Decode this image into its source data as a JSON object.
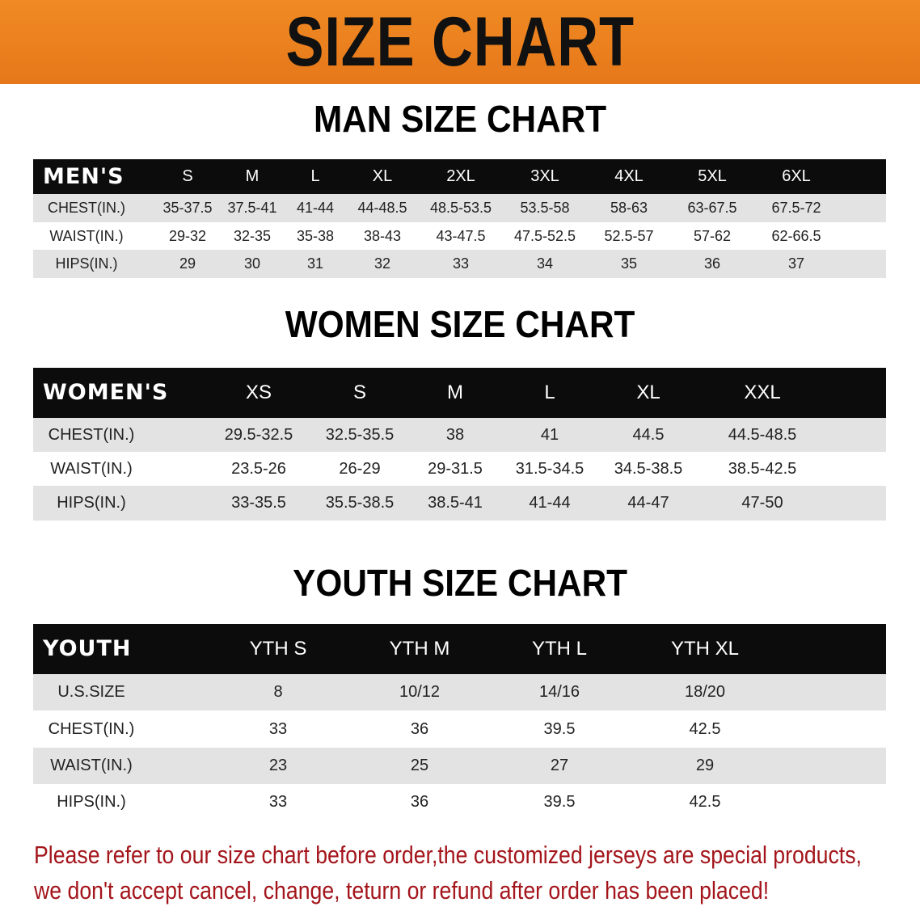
{
  "banner": {
    "title": "SIZE CHART",
    "color": "#ec7f1f"
  },
  "men": {
    "title": "MAN SIZE CHART",
    "header": "MEN'S",
    "sizes": [
      "S",
      "M",
      "L",
      "XL",
      "2XL",
      "3XL",
      "4XL",
      "5XL",
      "6XL"
    ],
    "rows": [
      {
        "label": "CHEST(IN.)",
        "values": [
          "35-37.5",
          "37.5-41",
          "41-44",
          "44-48.5",
          "48.5-53.5",
          "53.5-58",
          "58-63",
          "63-67.5",
          "67.5-72"
        ]
      },
      {
        "label": "WAIST(IN.)",
        "values": [
          "29-32",
          "32-35",
          "35-38",
          "38-43",
          "43-47.5",
          "47.5-52.5",
          "52.5-57",
          "57-62",
          "62-66.5"
        ]
      },
      {
        "label": "HIPS(IN.)",
        "values": [
          "29",
          "30",
          "31",
          "32",
          "33",
          "34",
          "35",
          "36",
          "37"
        ]
      }
    ]
  },
  "women": {
    "title": "WOMEN SIZE CHART",
    "header": "WOMEN'S",
    "sizes": [
      "XS",
      "S",
      "M",
      "L",
      "XL",
      "XXL"
    ],
    "rows": [
      {
        "label": "CHEST(IN.)",
        "values": [
          "29.5-32.5",
          "32.5-35.5",
          "38",
          "41",
          "44.5",
          "44.5-48.5"
        ]
      },
      {
        "label": "WAIST(IN.)",
        "values": [
          "23.5-26",
          "26-29",
          "29-31.5",
          "31.5-34.5",
          "34.5-38.5",
          "38.5-42.5"
        ]
      },
      {
        "label": "HIPS(IN.)",
        "values": [
          "33-35.5",
          "35.5-38.5",
          "38.5-41",
          "41-44",
          "44-47",
          "47-50"
        ]
      }
    ]
  },
  "youth": {
    "title": "YOUTH SIZE CHART",
    "header": "YOUTH",
    "sizes": [
      "YTH S",
      "YTH M",
      "YTH L",
      "YTH XL"
    ],
    "rows": [
      {
        "label": "U.S.SIZE",
        "values": [
          "8",
          "10/12",
          "14/16",
          "18/20"
        ]
      },
      {
        "label": "CHEST(IN.)",
        "values": [
          "33",
          "36",
          "39.5",
          "42.5"
        ]
      },
      {
        "label": "WAIST(IN.)",
        "values": [
          "23",
          "25",
          "27",
          "29"
        ]
      },
      {
        "label": "HIPS(IN.)",
        "values": [
          "33",
          "36",
          "39.5",
          "42.5"
        ]
      }
    ]
  },
  "note": {
    "line1": "Please refer to our size chart before order,the customized jerseys are special products,",
    "line2": "we don't accept cancel, change, teturn or refund after order has been placed!",
    "color": "#a3151b"
  }
}
